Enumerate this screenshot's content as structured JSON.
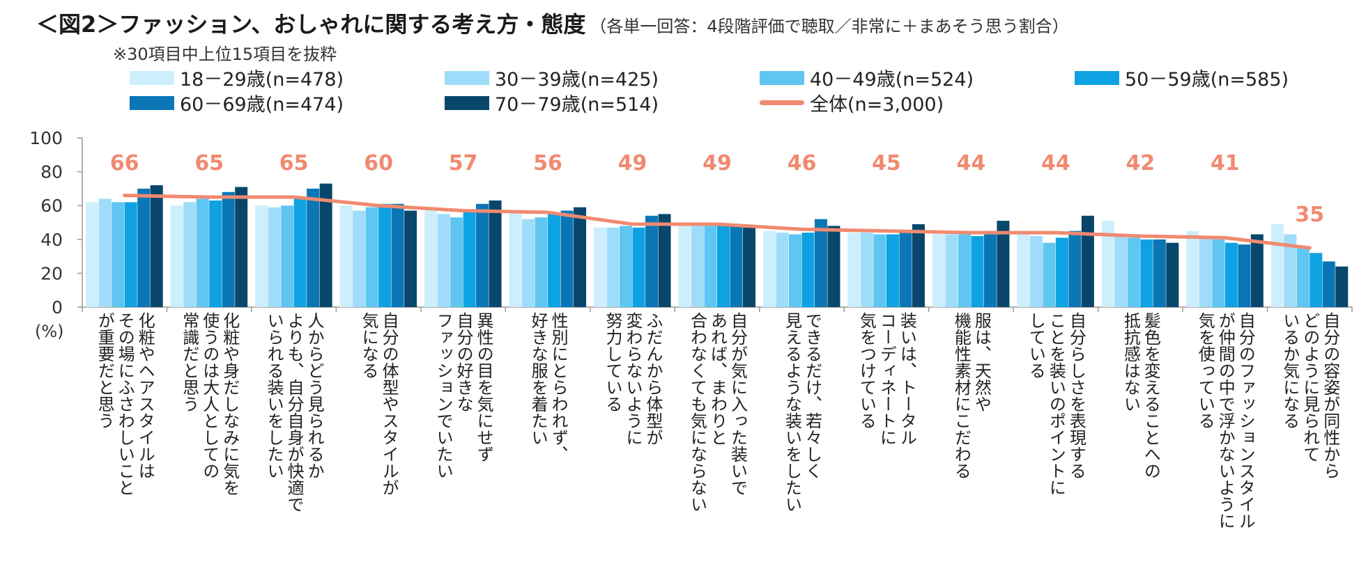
{
  "title": {
    "main": "＜図2＞ファッション、おしゃれに関する考え方・態度",
    "sub": "（各単一回答：4段階評価で聴取／非常に＋まあそう思う割合）"
  },
  "note": "※30項目中上位15項目を抜粋",
  "colors": {
    "s0": "#cdeefc",
    "s1": "#9fdcf9",
    "s2": "#5fc6f2",
    "s3": "#0ea2e3",
    "s4": "#0b76b5",
    "s5": "#08476b",
    "total": "#f08a70",
    "axis": "#999999"
  },
  "chart_data": {
    "type": "bar",
    "unit_label": "(%)",
    "ylim": [
      0,
      100
    ],
    "yticks": [
      "0",
      "20",
      "40",
      "60",
      "80",
      "100"
    ],
    "categories": [
      "化粧やヘアスタイルは\nその場にふさわしいこと\nが重要だと思う",
      "化粧や身だしなみに気を\n使うのは大人としての\n常識だと思う",
      "人からどう見られるか\nよりも、自分自身が快適で\nいられる装いをしたい",
      "自分の体型やスタイルが\n気になる",
      "異性の目を気にせず\n自分の好きな\nファッションでいたい",
      "性別にとらわれず、\n好きな服を着たい",
      "ふだんから体型が\n変わらないように\n努力している",
      "自分が気に入った装いで\nあれば、まわりと\n合わなくても気にならない",
      "できるだけ、若々しく\n見えるような装いをしたい",
      "装いは、トータル\nコーディネートに\n気をつけている",
      "服は、天然や\n機能性素材にこだわる",
      "自分らしさを表現する\nことを装いのポイントに\nしている",
      "髪色を変えることへの\n抵抗感はない",
      "自分のファッションスタイル\nが仲間の中で浮かないように\n気を使っている",
      "自分の容姿が同性から\nどのように見られて\nいるか気になる"
    ],
    "series": [
      {
        "name": "18－29歳(n=478)",
        "values": [
          62,
          60,
          60,
          60,
          57,
          57,
          47,
          48,
          45,
          44,
          43,
          44,
          51,
          45,
          49
        ]
      },
      {
        "name": "30－39歳(n=425)",
        "values": [
          64,
          62,
          59,
          57,
          55,
          52,
          47,
          48,
          44,
          44,
          43,
          42,
          42,
          42,
          43
        ]
      },
      {
        "name": "40－49歳(n=524)",
        "values": [
          62,
          64,
          60,
          59,
          53,
          53,
          48,
          48,
          43,
          43,
          43,
          38,
          41,
          40,
          36
        ]
      },
      {
        "name": "50－59歳(n=585)",
        "values": [
          62,
          63,
          64,
          61,
          57,
          55,
          47,
          48,
          44,
          43,
          42,
          41,
          40,
          38,
          32
        ]
      },
      {
        "name": "60－69歳(n=474)",
        "values": [
          70,
          68,
          70,
          61,
          61,
          57,
          54,
          48,
          52,
          44,
          45,
          45,
          40,
          37,
          27
        ]
      },
      {
        "name": "70－79歳(n=514)",
        "values": [
          72,
          71,
          73,
          57,
          63,
          59,
          55,
          47,
          48,
          49,
          51,
          54,
          38,
          43,
          24
        ]
      }
    ],
    "total": {
      "name": "全体(n=3,000)",
      "values": [
        66,
        65,
        65,
        60,
        57,
        56,
        49,
        49,
        46,
        45,
        44,
        44,
        42,
        41,
        35
      ]
    }
  }
}
